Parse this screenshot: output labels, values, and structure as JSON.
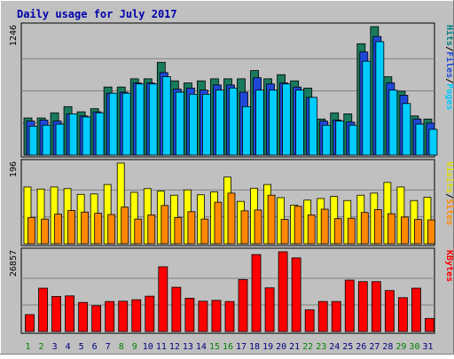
{
  "chart_data": {
    "type": "bar",
    "title": "Daily usage for July 2017",
    "days": [
      "1",
      "2",
      "3",
      "4",
      "5",
      "6",
      "7",
      "8",
      "9",
      "10",
      "11",
      "12",
      "13",
      "14",
      "15",
      "16",
      "17",
      "18",
      "19",
      "20",
      "21",
      "22",
      "23",
      "24",
      "25",
      "26",
      "27",
      "28",
      "29",
      "30",
      "31"
    ],
    "weekend_days": [
      "1",
      "2",
      "8",
      "9",
      "15",
      "16",
      "22",
      "23",
      "29",
      "30"
    ],
    "panels": [
      {
        "id": "hits",
        "ymax_label": "1246",
        "ymax": 1246,
        "series": [
          {
            "name": "Hits",
            "color": "#1a7a5e",
            "values": [
              360,
              360,
              410,
              470,
              420,
              450,
              660,
              660,
              740,
              740,
              900,
              720,
              700,
              720,
              740,
              740,
              740,
              820,
              740,
              780,
              720,
              650,
              350,
              410,
              400,
              1080,
              1246,
              760,
              620,
              380,
              350
            ]
          },
          {
            "name": "Files",
            "color": "#1e48d8",
            "values": [
              330,
              340,
              330,
              400,
              380,
              420,
              600,
              610,
              700,
              700,
              800,
              640,
              650,
              630,
              680,
              680,
              610,
              750,
              690,
              700,
              660,
              560,
              330,
              340,
              320,
              1000,
              1150,
              700,
              580,
              350,
              310
            ]
          },
          {
            "name": "Pages",
            "color": "#00ccff",
            "values": [
              280,
              290,
              300,
              400,
              370,
              410,
              600,
              600,
              690,
              690,
              760,
              610,
              590,
              590,
              630,
              650,
              470,
              630,
              630,
              690,
              630,
              560,
              290,
              330,
              290,
              910,
              1100,
              630,
              500,
              300,
              250
            ]
          }
        ],
        "labels": [
          "Hits",
          "/",
          "Files",
          "/",
          "Pages"
        ],
        "label_colors": [
          "#008080",
          "#000000",
          "#1e48d8",
          "#000000",
          "#00ccff"
        ]
      },
      {
        "id": "visits",
        "ymax_label": "196",
        "ymax": 196,
        "series": [
          {
            "name": "Visits",
            "color": "#ffff00",
            "values": [
              138,
              133,
              138,
              134,
              120,
              121,
              144,
              196,
              125,
              134,
              128,
              118,
              131,
              119,
              126,
              162,
              103,
              135,
              144,
              112,
              94,
              106,
              110,
              115,
              105,
              118,
              123,
              149,
              138,
              105,
              113
            ]
          },
          {
            "name": "Sites",
            "color": "#ff8800",
            "values": [
              64,
              60,
              72,
              81,
              77,
              74,
              71,
              89,
              60,
              70,
              93,
              64,
              78,
              60,
              101,
              123,
              80,
              82,
              118,
              59,
              91,
              70,
              84,
              61,
              62,
              76,
              83,
              73,
              65,
              59,
              58
            ]
          }
        ],
        "labels": [
          "Visits",
          "/",
          "Sites"
        ],
        "label_colors": [
          "#e0e000",
          "#000000",
          "#ff8800"
        ]
      },
      {
        "id": "kbytes",
        "ymax_label": "26857",
        "ymax": 26857,
        "series": [
          {
            "name": "KBytes",
            "color": "#ff0000",
            "values": [
              5700,
              14600,
              11800,
              12000,
              9800,
              8700,
              10100,
              10200,
              10700,
              11900,
              21800,
              14900,
              11200,
              10200,
              10500,
              10100,
              17500,
              25900,
              14700,
              26857,
              24800,
              7300,
              10100,
              10100,
              17300,
              16800,
              16800,
              13800,
              11400,
              14600,
              4400
            ]
          }
        ],
        "labels": [
          "KBytes"
        ],
        "label_colors": [
          "#ff0000"
        ]
      }
    ]
  }
}
